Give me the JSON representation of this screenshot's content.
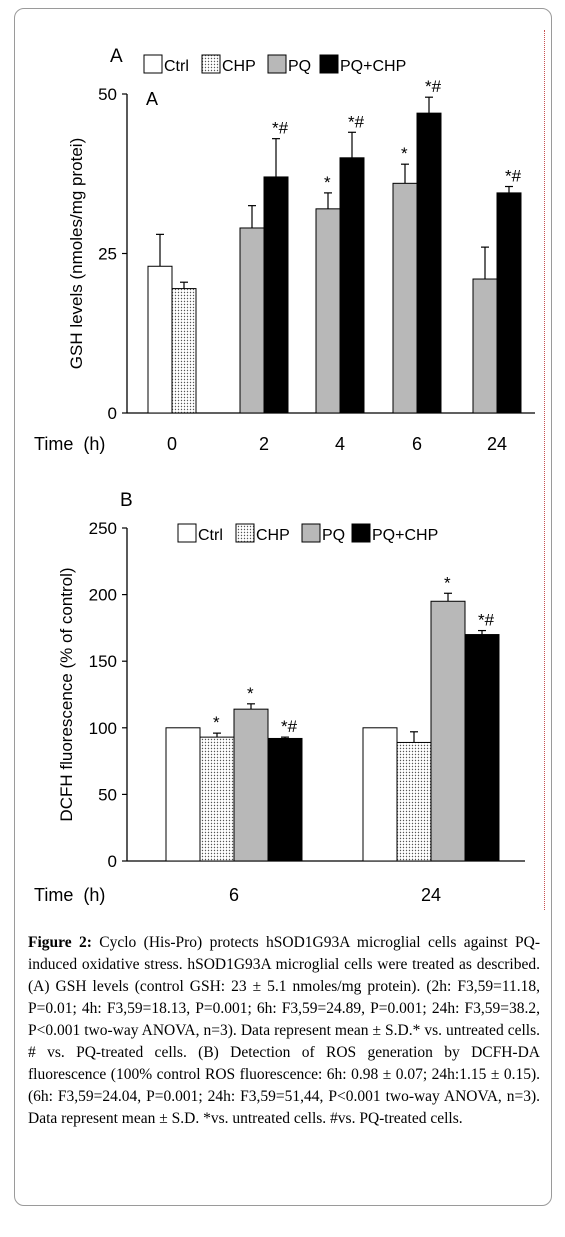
{
  "chart_data": [
    {
      "type": "bar",
      "panel_label": "A",
      "inner_label": "A",
      "ylabel": "GSH levels (nmoles/mg protei)",
      "xlabel": "Time  (h)",
      "categories": [
        "0",
        "2",
        "4",
        "6",
        "24"
      ],
      "ylim": [
        0,
        50
      ],
      "yticks": [
        "0",
        "25",
        "50"
      ],
      "series": [
        {
          "name": "Ctrl",
          "fill": "#ffffff",
          "values": [
            23,
            null,
            null,
            null,
            null
          ],
          "errors": [
            5,
            null,
            null,
            null,
            null
          ]
        },
        {
          "name": "CHP",
          "fill": "dots",
          "values": [
            19.5,
            null,
            null,
            null,
            null
          ],
          "errors": [
            1,
            null,
            null,
            null,
            null
          ]
        },
        {
          "name": "PQ",
          "fill": "#b8b8b8",
          "values": [
            null,
            29,
            32,
            36,
            21
          ],
          "errors": [
            null,
            3.5,
            2.5,
            3,
            5
          ]
        },
        {
          "name": "PQ+CHP",
          "fill": "#000000",
          "values": [
            null,
            37,
            40,
            47,
            34.5
          ],
          "errors": [
            null,
            6,
            4,
            2.5,
            1
          ]
        }
      ],
      "annotations": [
        {
          "category": "2",
          "series": "PQ+CHP",
          "text": "*#"
        },
        {
          "category": "4",
          "series": "PQ",
          "text": "*"
        },
        {
          "category": "4",
          "series": "PQ+CHP",
          "text": "*#"
        },
        {
          "category": "6",
          "series": "PQ",
          "text": "*"
        },
        {
          "category": "6",
          "series": "PQ+CHP",
          "text": "*#"
        },
        {
          "category": "24",
          "series": "PQ+CHP",
          "text": "*#"
        }
      ]
    },
    {
      "type": "bar",
      "panel_label": "B",
      "ylabel": "DCFH fluorescence (% of control)",
      "xlabel": "Time  (h)",
      "categories": [
        "6",
        "24"
      ],
      "ylim": [
        0,
        250
      ],
      "yticks": [
        "0",
        "50",
        "100",
        "150",
        "200",
        "250"
      ],
      "series": [
        {
          "name": "Ctrl",
          "fill": "#ffffff",
          "values": [
            100,
            100
          ],
          "errors": [
            0,
            0
          ]
        },
        {
          "name": "CHP",
          "fill": "dots",
          "values": [
            93,
            89
          ],
          "errors": [
            3,
            8
          ]
        },
        {
          "name": "PQ",
          "fill": "#b8b8b8",
          "values": [
            114,
            195
          ],
          "errors": [
            4,
            6
          ]
        },
        {
          "name": "PQ+CHP",
          "fill": "#000000",
          "values": [
            92,
            170
          ],
          "errors": [
            1,
            3
          ]
        }
      ],
      "annotations": [
        {
          "category": "6",
          "series": "CHP",
          "text": "*"
        },
        {
          "category": "6",
          "series": "PQ",
          "text": "*"
        },
        {
          "category": "6",
          "series": "PQ+CHP",
          "text": "*#"
        },
        {
          "category": "24",
          "series": "PQ",
          "text": "*"
        },
        {
          "category": "24",
          "series": "PQ+CHP",
          "text": "*#"
        }
      ]
    }
  ],
  "caption": {
    "label": "Figure 2:",
    "text": " Cyclo (His-Pro) protects hSOD1G93A microglial cells against PQ-induced oxidative stress. hSOD1G93A microglial cells were treated as described. (A) GSH levels (control GSH: 23 ± 5.1 nmoles/mg protein). (2h: F3,59=11.18, P=0.01; 4h: F3,59=18.13, P=0.001; 6h: F3,59=24.89, P=0.001; 24h: F3,59=38.2, P<0.001 two-way ANOVA, n=3). Data represent mean ± S.D.* vs. untreated cells. # vs. PQ-treated cells. (B) Detection of ROS generation by DCFH-DA fluorescence (100% control ROS fluorescence: 6h: 0.98 ± 0.07; 24h:1.15 ± 0.15). (6h: F3,59=24.04, P=0.001; 24h: F3,59=51,44, P<0.001 two-way ANOVA, n=3). Data represent mean ± S.D. *vs. untreated cells. #vs. PQ-treated cells."
  }
}
